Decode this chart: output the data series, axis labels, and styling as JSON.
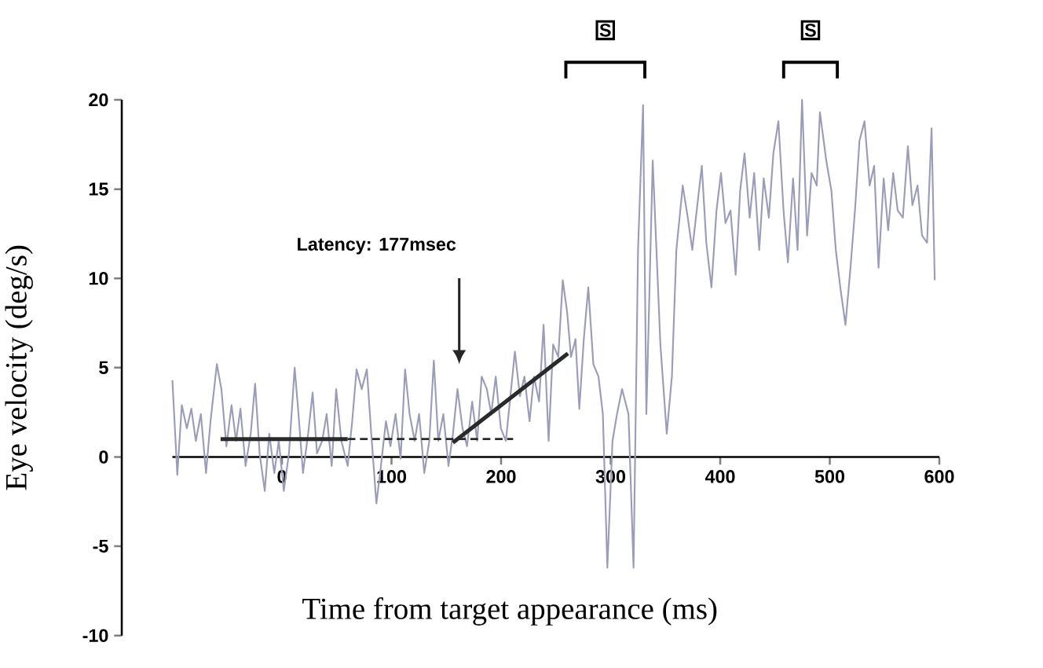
{
  "chart_data": {
    "type": "line",
    "xlabel": "Time from target appearance (ms)",
    "ylabel": "Eye velocity (deg/s)",
    "xlim": [
      -100,
      600
    ],
    "ylim": [
      -10,
      20
    ],
    "xticks": [
      0,
      100,
      200,
      300,
      400,
      500,
      600
    ],
    "yticks": [
      -10,
      -5,
      0,
      5,
      10,
      15,
      20
    ],
    "series": [
      {
        "color": "#9a9cb8",
        "line_style": "solid",
        "x": [
          -100,
          -95.5,
          -91.4,
          -86.8,
          -82.7,
          -78.6,
          -74,
          -69.3,
          -65.2,
          -59.4,
          -55.3,
          -50.7,
          -46,
          -41.9,
          -37.9,
          -33.2,
          -28.5,
          -24.5,
          -20.4,
          -15.7,
          -11.6,
          -7,
          -2.9,
          1.7,
          6.4,
          11.6,
          15.1,
          19.2,
          23.9,
          28,
          32,
          36.7,
          40.8,
          45.4,
          49.5,
          54.2,
          60,
          64.1,
          68.1,
          72.8,
          77.5,
          81.5,
          86.2,
          90.3,
          94.9,
          99,
          103.7,
          108.3,
          112.4,
          116.5,
          121.1,
          125.2,
          129.9,
          134.5,
          138.6,
          142.7,
          147.3,
          152,
          156.1,
          160.2,
          164.8,
          168.9,
          173.6,
          178.2,
          182.3,
          187,
          191,
          195.1,
          199.8,
          204.4,
          208.5,
          212.6,
          217.2,
          221.3,
          226,
          230,
          234.7,
          238.8,
          243.4,
          247.5,
          252.2,
          256.3,
          260.3,
          263.8,
          267.9,
          271.4,
          275.5,
          279.6,
          284.2,
          288.9,
          292.9,
          297,
          301.7,
          305.8,
          310.4,
          316.3,
          320.9,
          325,
          329.6,
          332.6,
          338.4,
          345.4,
          351.2,
          355.9,
          360,
          365.8,
          370.4,
          374.5,
          379.1,
          383.2,
          387.3,
          392,
          396.6,
          400.7,
          404.8,
          409.4,
          414.1,
          418.2,
          422.2,
          426.9,
          431,
          435.6,
          439.7,
          444.4,
          448.5,
          453.1,
          457.8,
          461.8,
          466.5,
          470.6,
          474.7,
          479.3,
          483.4,
          488.1,
          491,
          496.8,
          501.5,
          505.5,
          509.6,
          514.3,
          518.9,
          523,
          527.1,
          531.7,
          536.4,
          540.5,
          544.5,
          549.2,
          553.3,
          557.9,
          562,
          566.7,
          571.3,
          575.4,
          580.1,
          584.2,
          588.8,
          592.9,
          595.8
        ],
        "values": [
          4.3,
          -1,
          2.9,
          1.6,
          2.7,
          0.9,
          2.4,
          -0.9,
          2,
          5.2,
          3.8,
          0.6,
          2.9,
          0.9,
          2.7,
          -0.5,
          1.3,
          4.1,
          0.2,
          -1.9,
          1.3,
          -0.9,
          0.9,
          -1.9,
          0.2,
          5,
          2.4,
          -0.9,
          1.3,
          3.6,
          0.2,
          0.9,
          2.4,
          -0.5,
          3.8,
          0.9,
          -0.5,
          2,
          4.9,
          3.8,
          4.9,
          1.3,
          -2.6,
          -0.5,
          2,
          0.6,
          2.4,
          -0.1,
          4.9,
          2.4,
          0.9,
          2.4,
          -0.9,
          0.9,
          5.4,
          0.9,
          2.4,
          -0.5,
          1.3,
          3.8,
          1.6,
          0.6,
          3.1,
          0.9,
          4.5,
          3.8,
          2.4,
          4.5,
          1.6,
          0.9,
          3.4,
          5.9,
          3.4,
          4.5,
          2,
          4.5,
          3.1,
          7.4,
          0.9,
          6.3,
          5.6,
          9.9,
          8.1,
          5.6,
          6.6,
          2.7,
          6.6,
          9.5,
          5.2,
          4.5,
          2.4,
          -6.2,
          0.9,
          2.4,
          3.8,
          2.4,
          -6.2,
          11.6,
          19.7,
          2.4,
          16.6,
          6.3,
          1.3,
          4.5,
          11.6,
          15.2,
          13.4,
          11.6,
          14.1,
          16.3,
          12,
          9.5,
          13.8,
          15.9,
          13.1,
          13.8,
          10.2,
          14.9,
          17,
          13.4,
          15.9,
          11.6,
          15.6,
          13.4,
          17,
          18.8,
          13.8,
          10.9,
          15.6,
          11.6,
          20,
          12.4,
          15.9,
          15.2,
          19.3,
          16.6,
          14.9,
          11.6,
          9.5,
          7.4,
          10.6,
          13.8,
          17.7,
          18.8,
          15.2,
          16.3,
          10.6,
          15.6,
          12.7,
          15.9,
          13.8,
          13.4,
          17.4,
          14.1,
          15.2,
          12.4,
          12,
          18.4,
          9.9
        ]
      },
      {
        "color": "#2a2a2a",
        "line_style": "solid",
        "x": [
          -56,
          60
        ],
        "values": [
          1,
          1
        ]
      },
      {
        "color": "#2a2a2a",
        "line_style": "dashed",
        "x": [
          60,
          211
        ],
        "values": [
          1,
          1
        ]
      },
      {
        "color": "#2a2a2a",
        "line_style": "solid",
        "x": [
          156,
          261
        ],
        "values": [
          0.8,
          5.8
        ]
      }
    ],
    "annotations": [
      "Latency: 177msec",
      "S",
      "S"
    ]
  }
}
